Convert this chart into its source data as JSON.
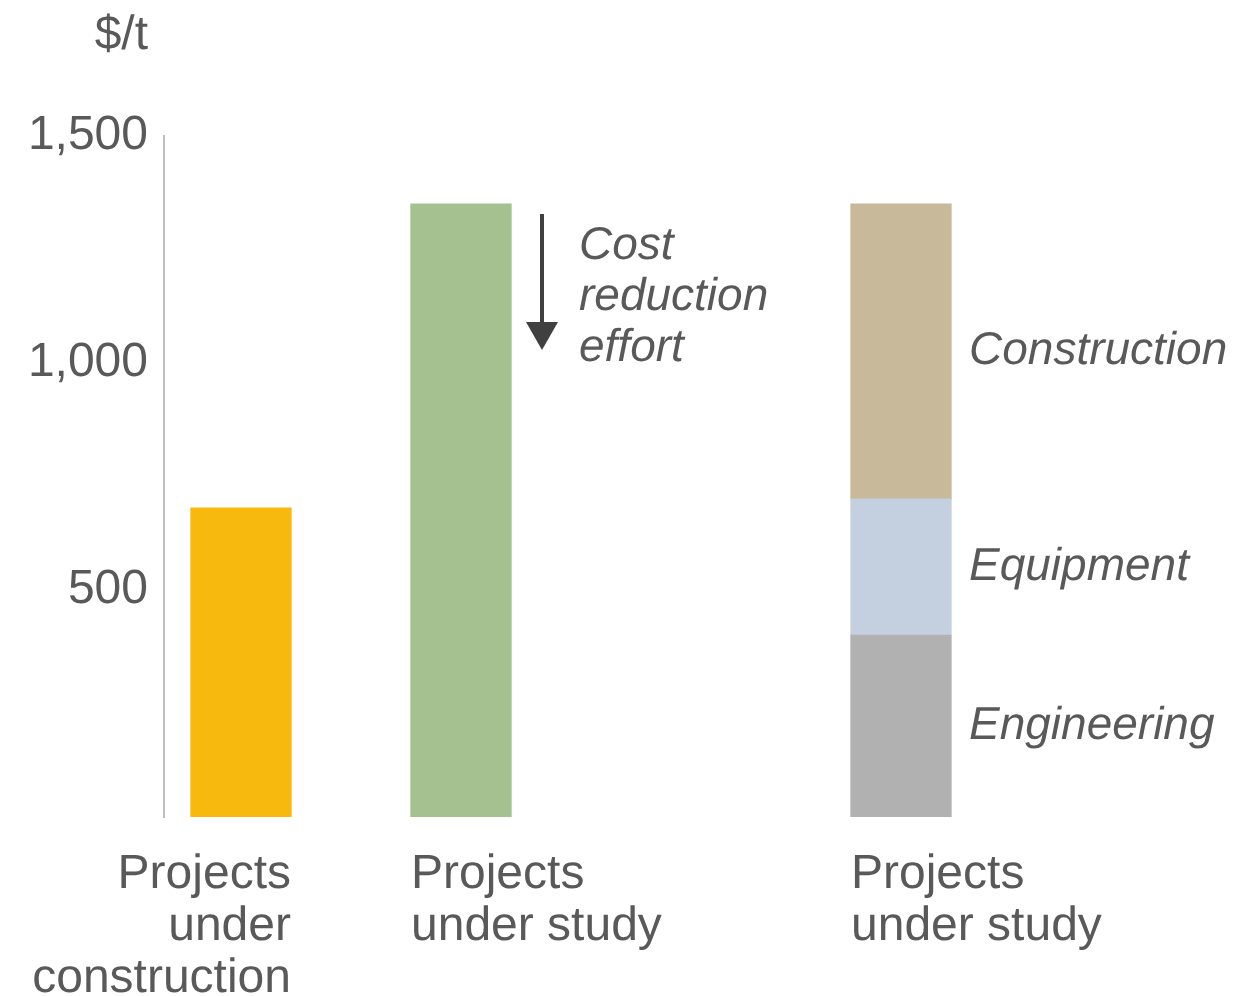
{
  "chart_data": {
    "type": "bar",
    "stacked": true,
    "ylabel": "$/t",
    "categories": [
      "Projects under construction",
      "Projects under study",
      "Projects under study"
    ],
    "series": [
      {
        "color": "#f8b90e",
        "values": [
          680,
          null,
          null
        ]
      },
      {
        "color": "#a6c190",
        "values": [
          null,
          1350,
          null
        ]
      },
      {
        "name": "Engineering",
        "color": "#b1b1b1",
        "values": [
          null,
          null,
          400
        ]
      },
      {
        "name": "Equipment",
        "color": "#c4d0e0",
        "values": [
          null,
          null,
          300
        ]
      },
      {
        "name": "Construction",
        "color": "#c8b99b",
        "values": [
          null,
          null,
          650
        ]
      }
    ],
    "ylim": [
      0,
      1500
    ],
    "yticks": [
      500,
      {
        "value": 1000,
        "label": "1,000"
      },
      {
        "value": 1500,
        "label": "1,500"
      }
    ],
    "annotations": [
      "Cost reduction effort"
    ]
  }
}
